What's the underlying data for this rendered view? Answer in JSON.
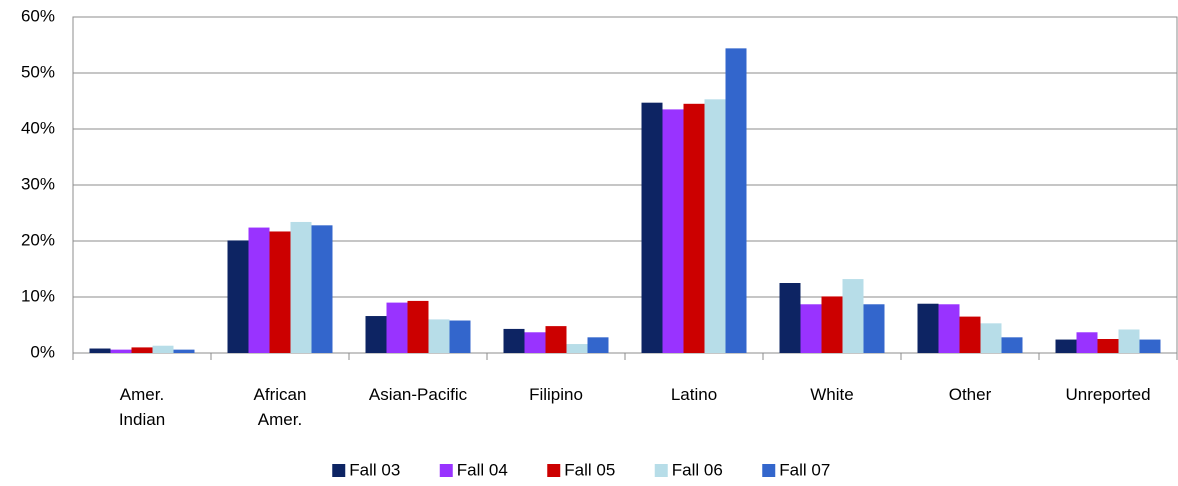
{
  "chart_data": {
    "type": "bar",
    "categories": [
      "Amer.\nIndian",
      "African\nAmer.",
      "Asian-Pacific",
      "Filipino",
      "Latino",
      "White",
      "Other",
      "Unreported"
    ],
    "series": [
      {
        "name": "Fall 03",
        "color": "#0d2463",
        "values": [
          0.8,
          20.1,
          6.6,
          4.3,
          44.7,
          12.5,
          8.8,
          2.4
        ]
      },
      {
        "name": "Fall 04",
        "color": "#9933ff",
        "values": [
          0.6,
          22.4,
          9.0,
          3.7,
          43.5,
          8.7,
          8.7,
          3.7
        ]
      },
      {
        "name": "Fall 05",
        "color": "#cc0000",
        "values": [
          1.0,
          21.7,
          9.3,
          4.8,
          44.5,
          10.1,
          6.5,
          2.5
        ]
      },
      {
        "name": "Fall 06",
        "color": "#b7dde8",
        "values": [
          1.3,
          23.4,
          6.0,
          1.6,
          45.3,
          13.2,
          5.3,
          4.2
        ]
      },
      {
        "name": "Fall 07",
        "color": "#3366cc",
        "values": [
          0.6,
          22.8,
          5.8,
          2.8,
          54.4,
          8.7,
          2.8,
          2.4
        ]
      }
    ],
    "ylim": [
      0,
      60
    ],
    "yticks": [
      {
        "value": 0,
        "label": "0%"
      },
      {
        "value": 10,
        "label": "10%"
      },
      {
        "value": 20,
        "label": "20%"
      },
      {
        "value": 30,
        "label": "30%"
      },
      {
        "value": 40,
        "label": "40%"
      },
      {
        "value": 50,
        "label": "50%"
      },
      {
        "value": 60,
        "label": "60%"
      }
    ],
    "grid": true,
    "legend": "bottom"
  }
}
